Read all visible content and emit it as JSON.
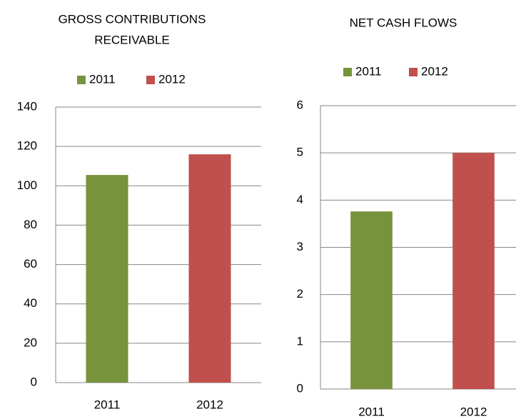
{
  "chart_data": [
    {
      "type": "bar",
      "title": [
        "GROSS CONTRIBUTIONS",
        "RECEIVABLE"
      ],
      "categories": [
        "2011",
        "2012"
      ],
      "series": [
        {
          "name": "2011",
          "color": "#77933c",
          "values": [
            105.5,
            null
          ]
        },
        {
          "name": "2012",
          "color": "#c0504d",
          "values": [
            null,
            116
          ]
        }
      ],
      "ylim": [
        0,
        140
      ],
      "yticks": [
        0,
        20,
        40,
        60,
        80,
        100,
        120,
        140
      ],
      "grid": true,
      "legend": "top"
    },
    {
      "type": "bar",
      "title": [
        "NET CASH FLOWS"
      ],
      "categories": [
        "2011",
        "2012"
      ],
      "series": [
        {
          "name": "2011",
          "color": "#77933c",
          "values": [
            3.76,
            null
          ]
        },
        {
          "name": "2012",
          "color": "#c0504d",
          "values": [
            null,
            5
          ]
        }
      ],
      "ylim": [
        0,
        6
      ],
      "yticks": [
        0,
        1,
        2,
        3,
        4,
        5,
        6
      ],
      "grid": true,
      "legend": "top"
    }
  ]
}
